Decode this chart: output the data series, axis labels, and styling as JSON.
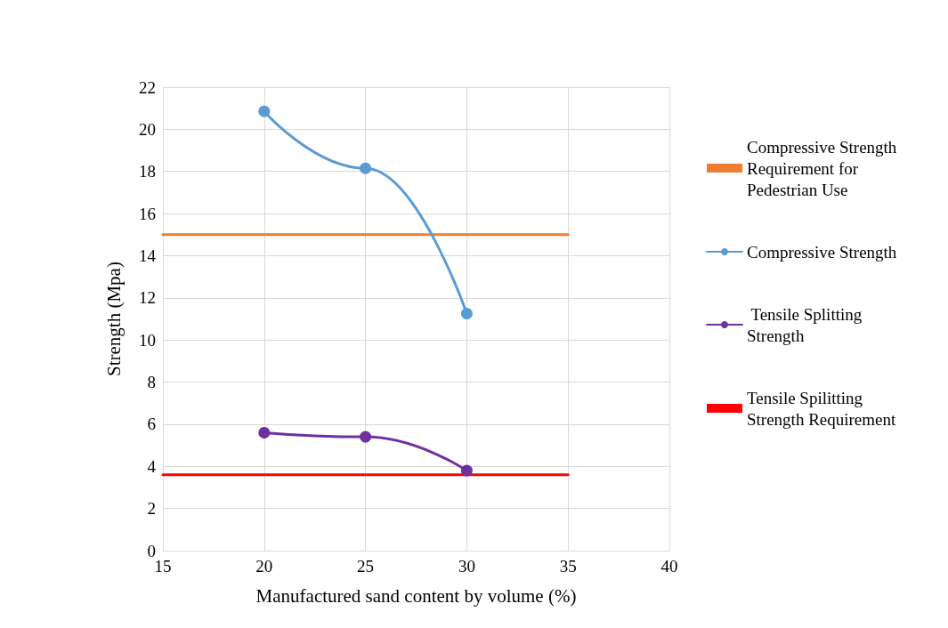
{
  "chart_data": {
    "type": "line",
    "xlabel": "Manufactured sand content by volume (%)",
    "ylabel": "Strength (Mpa)",
    "xlim": [
      15,
      40
    ],
    "xticks": [
      15,
      20,
      25,
      30,
      35,
      40
    ],
    "ylim": [
      0,
      22
    ],
    "yticks": [
      0,
      2,
      4,
      6,
      8,
      10,
      12,
      14,
      16,
      18,
      20,
      22
    ],
    "grid": true,
    "legend": "right",
    "marker": "circle",
    "series": [
      {
        "name": "Compressive Strength Requirement for Pedestrian Use",
        "color": "#ed7d31",
        "x": [
          15,
          35
        ],
        "values": [
          15,
          15
        ],
        "marker": "none"
      },
      {
        "name": "Compressive Strength",
        "color": "#5b9bd5",
        "x": [
          20,
          25,
          30
        ],
        "values": [
          20.85,
          18.15,
          11.25
        ]
      },
      {
        "name": " Tensile Splitting Strength",
        "color": "#7030a0",
        "x": [
          20,
          25,
          30
        ],
        "values": [
          5.6,
          5.4,
          3.8
        ]
      },
      {
        "name": "Tensile Spilitting Strength Requirement",
        "color": "#ff0000",
        "x": [
          15,
          35
        ],
        "values": [
          3.6,
          3.6
        ],
        "marker": "none"
      }
    ]
  }
}
